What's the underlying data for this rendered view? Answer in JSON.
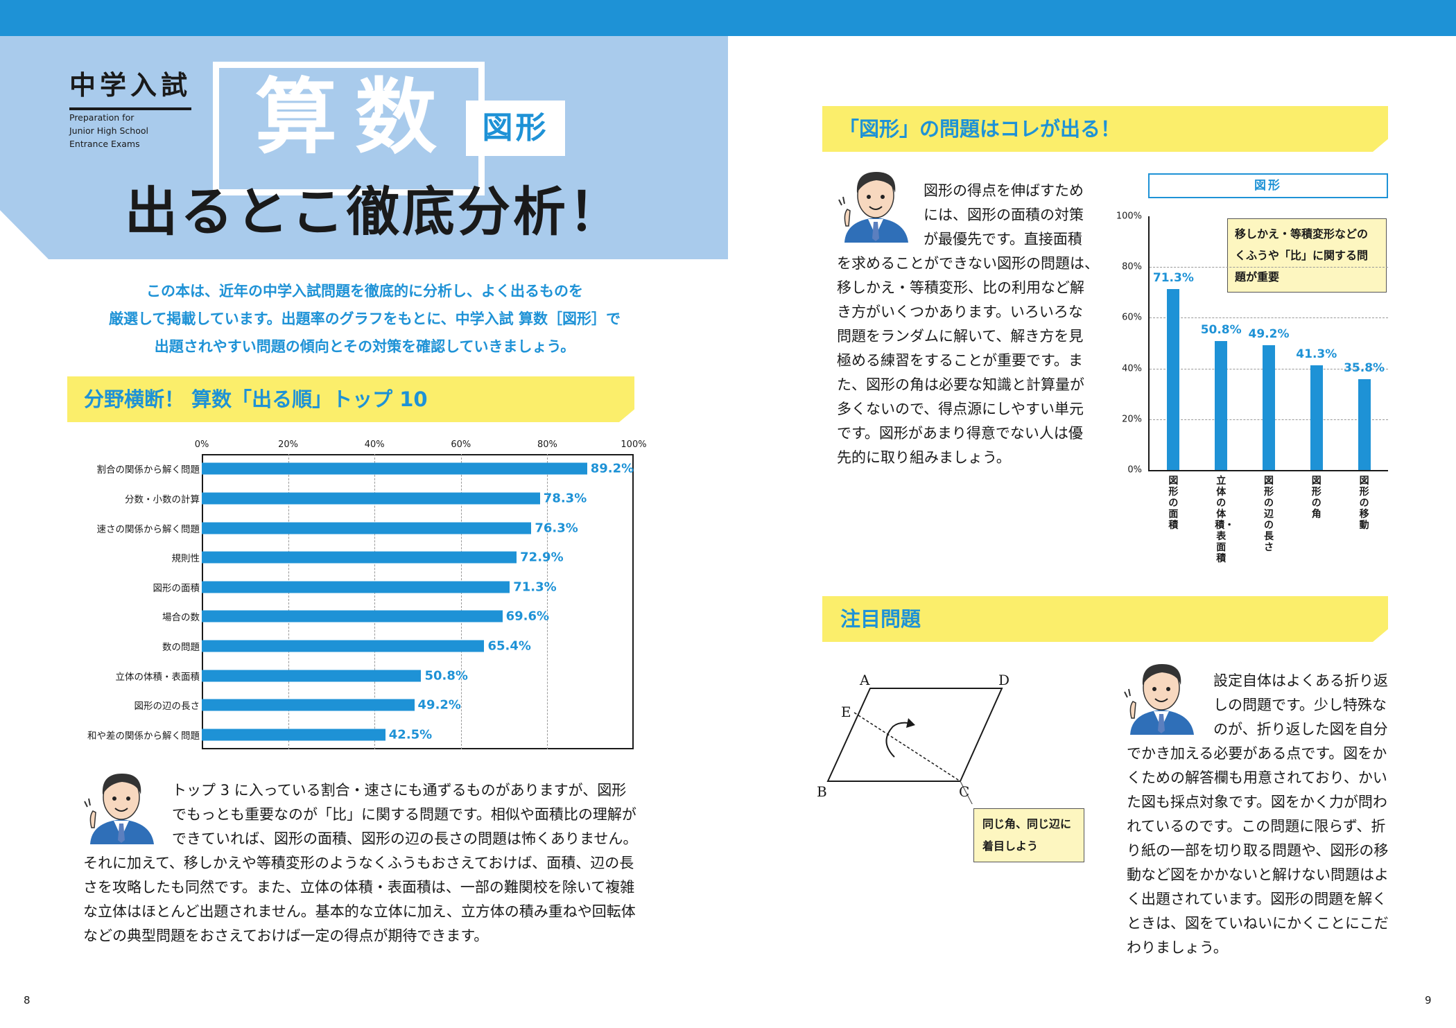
{
  "header": {
    "badge": "中学入試",
    "prep_lines": [
      "Preparation for",
      "Junior High School",
      "Entrance Exams"
    ],
    "subject": "算数",
    "topic": "図形",
    "main_title": "出るとこ徹底分析！"
  },
  "intro_lines": [
    "この本は、近年の中学入試問題を徹底的に分析し、よく出るものを",
    "厳選して掲載しています。出題率のグラフをもとに、中学入試 算数［図形］で",
    "出題されやすい問題の傾向とその対策を確認していきましょう。"
  ],
  "section_top10": {
    "heading": "分野横断！ 算数「出る順」トップ 10"
  },
  "chart_data": [
    {
      "type": "bar",
      "orientation": "horizontal",
      "categories": [
        "割合の関係から解く問題",
        "分数・小数の計算",
        "速さの関係から解く問題",
        "規則性",
        "図形の面積",
        "場合の数",
        "数の問題",
        "立体の体積・表面積",
        "図形の辺の長さ",
        "和や差の関係から解く問題"
      ],
      "values": [
        89.2,
        78.3,
        76.3,
        72.9,
        71.3,
        69.6,
        65.4,
        50.8,
        49.2,
        42.5
      ],
      "value_labels": [
        "89.2%",
        "78.3%",
        "76.3%",
        "72.9%",
        "71.3%",
        "69.6%",
        "65.4%",
        "50.8%",
        "49.2%",
        "42.5%"
      ],
      "xticks": [
        "0%",
        "20%",
        "40%",
        "60%",
        "80%",
        "100%"
      ],
      "xlim": [
        0,
        100
      ],
      "grid": true,
      "color": "#1e92d6"
    },
    {
      "type": "bar",
      "orientation": "vertical",
      "title": "図形",
      "categories": [
        "図形の面積",
        "立体の体積・表面積",
        "図形の辺の長さ",
        "図形の角",
        "図形の移動"
      ],
      "values": [
        71.3,
        50.8,
        49.2,
        41.3,
        35.8
      ],
      "value_labels": [
        "71.3%",
        "50.8%",
        "49.2%",
        "41.3%",
        "35.8%"
      ],
      "yticks": [
        "100%",
        "80%",
        "60%",
        "40%",
        "20%",
        "0%"
      ],
      "ylim": [
        0,
        100
      ],
      "grid": true,
      "annotation": "移しかえ・等積変形などのくふうや「比」に関する問題が重要",
      "annotation_lines": [
        "移しかえ・等積変形などの",
        "くふうや「比」に関する問",
        "題が重要"
      ],
      "color": "#1e92d6"
    }
  ],
  "commentary_left_lines": [
    "トップ 3 に入っている割合・速さにも通ずるものがありますが、図形",
    "でもっとも重要なのが「比」に関する問題です。相似や面積比の理解が",
    "できていれば、図形の面積、図形の辺の長さの問題は怖くありません。",
    "それに加えて、移しかえや等積変形のようなくふうもおさえておけば、面積、辺の長",
    "さを攻略したも同然です。また、立体の体積・表面積は、一部の難関校を除いて複雑",
    "な立体はほとんど出題されません。基本的な立体に加え、立方体の積み重ねや回転体",
    "などの典型問題をおさえておけば一定の得点が期待できます。"
  ],
  "section_right": {
    "heading": "「図形」の問題はコレが出る！",
    "text_lines": [
      "図形の得点を伸ばすため",
      "には、図形の面積の対策",
      "が最優先です。直接面積",
      "を求めることができない図形の問題は、",
      "移しかえ・等積変形、比の利用など解",
      "き方がいくつかあります。いろいろな",
      "問題をランダムに解いて、解き方を見",
      "極める練習をすることが重要です。ま",
      "た、図形の角は必要な知識と計算量が",
      "多くないので、得点源にしやすい単元",
      "です。図形があまり得意でない人は優",
      "先的に取り組みましょう。"
    ]
  },
  "section_notable": {
    "heading": "注目問題",
    "vertices": [
      "A",
      "D",
      "E",
      "B",
      "C"
    ],
    "note": "同じ角、同じ辺に着目しよう",
    "note_lines": [
      "同じ角、同じ辺に",
      "着目しよう"
    ],
    "text_lines": [
      "設定自体はよくある折り返",
      "しの問題です。少し特殊な",
      "のが、折り返した図を自分",
      "でかき加える必要がある点です。図をか",
      "くための解答欄も用意されており、かい",
      "た図も採点対象です。図をかく力が問わ",
      "れているのです。この問題に限らず、折",
      "り紙の一部を切り取る問題や、図形の移",
      "動など図をかかないと解けない問題はよ",
      "く出題されています。図形の問題を解く",
      "ときは、図をていねいにかくことにこだ",
      "わりましょう。"
    ]
  },
  "page_numbers": {
    "left": "8",
    "right": "9"
  },
  "colors": {
    "accent": "#1e92d6",
    "hero": "#a9cbec",
    "banner": "#fbee6b",
    "note": "#fdf6c0"
  }
}
